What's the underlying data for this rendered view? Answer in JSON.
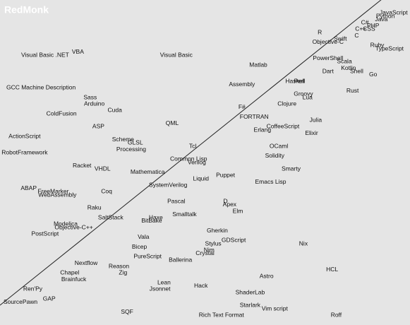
{
  "chart_data": {
    "type": "scatter",
    "brand": "RedMonk",
    "categories": [
      "JavaScript",
      "Python",
      "Java",
      "C#",
      "C++",
      "PHP",
      "CSS",
      "R",
      "Swift",
      "C",
      "Objective-C",
      "Ruby",
      "TypeScript",
      "VBA",
      "Visual Basic .NET",
      "Visual Basic",
      "PowerShell",
      "Scala",
      "Matlab",
      "Kotlin",
      "Shell",
      "Dart",
      "Go",
      "Perl",
      "Haskell",
      "Assembly",
      "GCC Machine Description",
      "Rust",
      "Groovy",
      "Sass",
      "Lua",
      "Arduino",
      "Clojure",
      "F#",
      "Cuda",
      "ColdFusion",
      "FORTRAN",
      "Julia",
      "QML",
      "ASP",
      "CoffeeScript",
      "Erlang",
      "Elixir",
      "ActionScript",
      "Scheme",
      "GLSL",
      "Tcl",
      "OCaml",
      "Processing",
      "RobotFramework",
      "Solidity",
      "Common Lisp",
      "Verilog",
      "Racket",
      "VHDL",
      "Smarty",
      "Mathematica",
      "Puppet",
      "Liquid",
      "Emacs Lisp",
      "SystemVerilog",
      "ABAP",
      "FreeMarker",
      "Coq",
      "WebAssembly",
      "D",
      "Pascal",
      "Apex",
      "Raku",
      "Elm",
      "Smalltalk",
      "Haxe",
      "SaltStack",
      "BitBake",
      "Modelica",
      "Objective-C++",
      "Gherkin",
      "PostScript",
      "Vala",
      "GDScript",
      "Stylus",
      "Nix",
      "Bicep",
      "Nim",
      "Crystal",
      "PureScript",
      "Ballerina",
      "Nextflow",
      "Reason",
      "HCL",
      "Zig",
      "Chapel",
      "Astro",
      "Brainfuck",
      "Lean",
      "Hack",
      "Jsonnet",
      "Ren'Py",
      "ShaderLab",
      "GAP",
      "SourcePawn",
      "Starlark",
      "Vim script",
      "SQF",
      "Rich Text Format",
      "Roff"
    ],
    "x": [
      96,
      94,
      93,
      89,
      88,
      91,
      90,
      78,
      83,
      87,
      80,
      92,
      95,
      19,
      11,
      43,
      80,
      84,
      63,
      85,
      87,
      80,
      91,
      73,
      72,
      59,
      10,
      86,
      74,
      22,
      75,
      23,
      70,
      59,
      28,
      15,
      62,
      77,
      42,
      24,
      69,
      64,
      76,
      6,
      30,
      33,
      47,
      68,
      32,
      6,
      67,
      46,
      48,
      20,
      25,
      71,
      36,
      55,
      49,
      66,
      41,
      7,
      13,
      26,
      14,
      55,
      43,
      56,
      23,
      58,
      45,
      38,
      27,
      37,
      16,
      18,
      53,
      11,
      35,
      57,
      52,
      74,
      34,
      51,
      50,
      36,
      44,
      21,
      29,
      81,
      30,
      17,
      65,
      18,
      40,
      49,
      39,
      8,
      61,
      12,
      5,
      61,
      67,
      31,
      54,
      82
    ],
    "y": [
      96,
      95,
      94,
      93,
      91,
      92,
      91,
      90,
      88,
      89,
      87,
      86,
      85,
      84,
      83,
      83,
      82,
      81,
      80,
      79,
      78,
      78,
      77,
      75,
      75,
      74,
      73,
      72,
      71,
      70,
      70,
      68,
      68,
      67,
      66,
      65,
      64,
      63,
      62,
      61,
      61,
      60,
      59,
      58,
      57,
      56,
      55,
      55,
      54,
      53,
      52,
      51,
      50,
      49,
      48,
      48,
      47,
      46,
      45,
      44,
      43,
      42,
      41,
      41,
      40,
      38,
      38,
      37,
      36,
      35,
      34,
      33,
      33,
      32,
      31,
      30,
      29,
      28,
      27,
      26,
      25,
      25,
      24,
      23,
      22,
      21,
      20,
      19,
      18,
      17,
      16,
      16,
      15,
      14,
      13,
      12,
      11,
      11,
      10,
      8,
      7,
      6,
      5,
      4,
      3,
      3
    ],
    "xlim": [
      0,
      100
    ],
    "ylim": [
      0,
      100
    ]
  }
}
